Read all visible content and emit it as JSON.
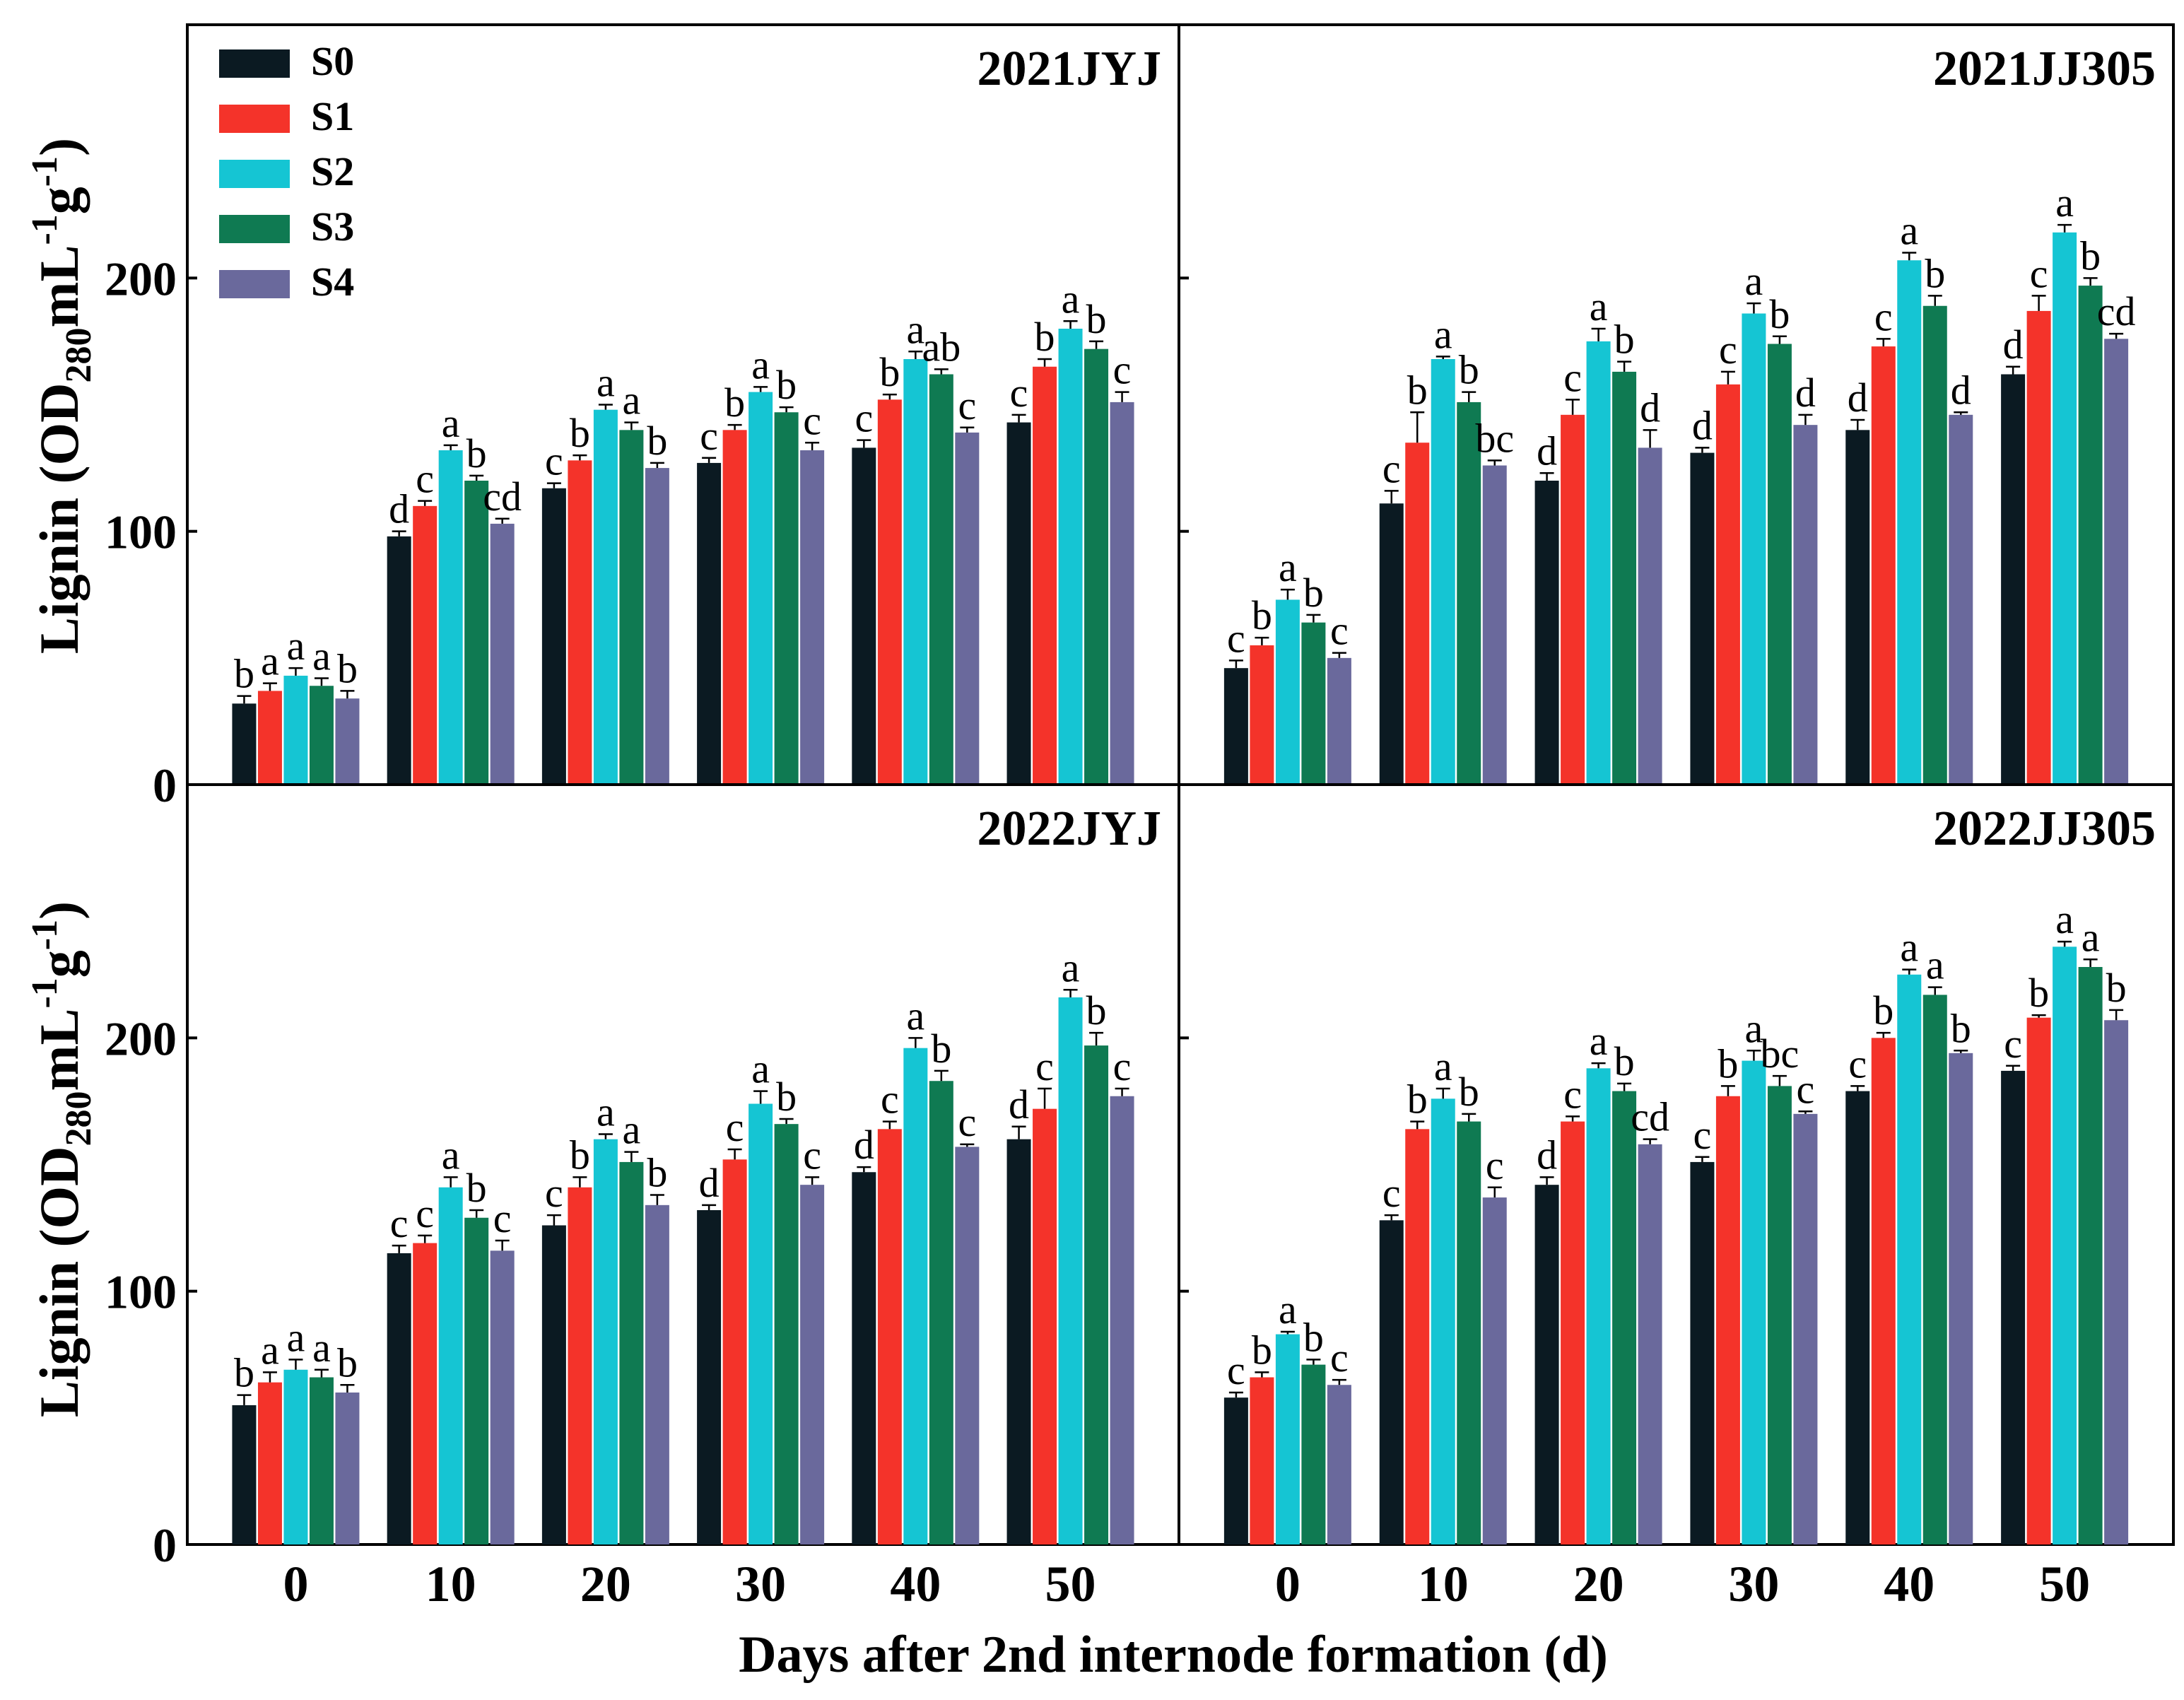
{
  "figure": {
    "ylabel": "Lignin (OD",
    "ylabel_sub": "280",
    "ylabel_mid": "mL",
    "ylabel_sup1": "-1",
    "ylabel_g": "g",
    "ylabel_sup2": "-1",
    "ylabel_end": ")",
    "xlabel": "Days after 2nd internode formation (d)"
  },
  "legend": {
    "placement": "top-left",
    "items": [
      {
        "label": "S0",
        "color": "#0b1a22"
      },
      {
        "label": "S1",
        "color": "#f4332a"
      },
      {
        "label": "S2",
        "color": "#15c5d3"
      },
      {
        "label": "S3",
        "color": "#0f7a52"
      },
      {
        "label": "S4",
        "color": "#6a699c"
      }
    ]
  },
  "chart_data": [
    {
      "type": "bar",
      "title": "2021JYJ",
      "categories": [
        "0",
        "10",
        "20",
        "30",
        "40",
        "50"
      ],
      "ylim": [
        0,
        300
      ],
      "yticks": [
        "0",
        "100",
        "200"
      ],
      "series": [
        {
          "name": "S0",
          "values": [
            32,
            98,
            117,
            127,
            133,
            143
          ],
          "errors": [
            3,
            2,
            2,
            2,
            3,
            3
          ],
          "letters": [
            "b",
            "d",
            "c",
            "c",
            "c",
            "c"
          ]
        },
        {
          "name": "S1",
          "values": [
            37,
            110,
            128,
            140,
            152,
            165
          ],
          "errors": [
            3,
            2,
            2,
            2,
            2,
            3
          ],
          "letters": [
            "a",
            "c",
            "b",
            "b",
            "b",
            "b"
          ]
        },
        {
          "name": "S2",
          "values": [
            43,
            132,
            148,
            155,
            168,
            180
          ],
          "errors": [
            3,
            2,
            2,
            2,
            3,
            3
          ],
          "letters": [
            "a",
            "a",
            "a",
            "a",
            "a",
            "a"
          ]
        },
        {
          "name": "S3",
          "values": [
            39,
            120,
            140,
            147,
            162,
            172
          ],
          "errors": [
            3,
            2,
            3,
            2,
            2,
            3
          ],
          "letters": [
            "a",
            "b",
            "a",
            "b",
            "ab",
            "b"
          ]
        },
        {
          "name": "S4",
          "values": [
            34,
            103,
            125,
            132,
            139,
            151
          ],
          "errors": [
            3,
            2,
            2,
            3,
            2,
            4
          ],
          "letters": [
            "b",
            "cd",
            "b",
            "c",
            "c",
            "c"
          ]
        }
      ]
    },
    {
      "type": "bar",
      "title": "2021JJ305",
      "categories": [
        "0",
        "10",
        "20",
        "30",
        "40",
        "50"
      ],
      "ylim": [
        0,
        300
      ],
      "yticks": [
        "0",
        "100",
        "200"
      ],
      "series": [
        {
          "name": "S0",
          "values": [
            46,
            111,
            120,
            131,
            140,
            162
          ],
          "errors": [
            3,
            5,
            3,
            2,
            4,
            3
          ],
          "letters": [
            "c",
            "c",
            "d",
            "d",
            "d",
            "d"
          ]
        },
        {
          "name": "S1",
          "values": [
            55,
            135,
            146,
            158,
            173,
            187
          ],
          "errors": [
            3,
            12,
            6,
            5,
            3,
            6
          ],
          "letters": [
            "b",
            "b",
            "c",
            "c",
            "c",
            "c"
          ]
        },
        {
          "name": "S2",
          "values": [
            73,
            168,
            175,
            186,
            207,
            218
          ],
          "errors": [
            4,
            1,
            5,
            4,
            3,
            3
          ],
          "letters": [
            "a",
            "a",
            "a",
            "a",
            "a",
            "a"
          ]
        },
        {
          "name": "S3",
          "values": [
            64,
            151,
            163,
            174,
            189,
            197
          ],
          "errors": [
            3,
            4,
            4,
            3,
            4,
            3
          ],
          "letters": [
            "b",
            "b",
            "b",
            "b",
            "b",
            "b"
          ]
        },
        {
          "name": "S4",
          "values": [
            50,
            126,
            133,
            142,
            146,
            176
          ],
          "errors": [
            2,
            2,
            7,
            4,
            1,
            2
          ],
          "letters": [
            "c",
            "bc",
            "d",
            "d",
            "d",
            "cd"
          ]
        }
      ]
    },
    {
      "type": "bar",
      "title": "2022JYJ",
      "categories": [
        "0",
        "10",
        "20",
        "30",
        "40",
        "50"
      ],
      "ylim": [
        0,
        300
      ],
      "yticks": [
        "0",
        "100",
        "200"
      ],
      "series": [
        {
          "name": "S0",
          "values": [
            55,
            115,
            126,
            132,
            147,
            160
          ],
          "errors": [
            4,
            3,
            4,
            2,
            2,
            5
          ],
          "letters": [
            "b",
            "c",
            "c",
            "d",
            "d",
            "d"
          ]
        },
        {
          "name": "S1",
          "values": [
            64,
            119,
            141,
            152,
            164,
            172
          ],
          "errors": [
            4,
            3,
            4,
            4,
            3,
            8
          ],
          "letters": [
            "a",
            "c",
            "b",
            "c",
            "c",
            "c"
          ]
        },
        {
          "name": "S2",
          "values": [
            69,
            141,
            160,
            174,
            196,
            216
          ],
          "errors": [
            4,
            4,
            2,
            5,
            4,
            3
          ],
          "letters": [
            "a",
            "a",
            "a",
            "a",
            "a",
            "a"
          ]
        },
        {
          "name": "S3",
          "values": [
            66,
            129,
            151,
            166,
            183,
            197
          ],
          "errors": [
            3,
            3,
            4,
            2,
            4,
            5
          ],
          "letters": [
            "a",
            "b",
            "a",
            "b",
            "b",
            "b"
          ]
        },
        {
          "name": "S4",
          "values": [
            60,
            116,
            134,
            142,
            157,
            177
          ],
          "errors": [
            3,
            4,
            4,
            3,
            1,
            3
          ],
          "letters": [
            "b",
            "c",
            "b",
            "c",
            "c",
            "c"
          ]
        }
      ]
    },
    {
      "type": "bar",
      "title": "2022JJ305",
      "categories": [
        "0",
        "10",
        "20",
        "30",
        "40",
        "50"
      ],
      "ylim": [
        0,
        300
      ],
      "yticks": [
        "0",
        "100",
        "200"
      ],
      "series": [
        {
          "name": "S0",
          "values": [
            58,
            128,
            142,
            151,
            179,
            187
          ],
          "errors": [
            2,
            2,
            3,
            2,
            2,
            2
          ],
          "letters": [
            "c",
            "c",
            "d",
            "c",
            "c",
            "c"
          ]
        },
        {
          "name": "S1",
          "values": [
            66,
            164,
            167,
            177,
            200,
            208
          ],
          "errors": [
            2,
            3,
            2,
            4,
            2,
            1
          ],
          "letters": [
            "b",
            "b",
            "c",
            "b",
            "b",
            "b"
          ]
        },
        {
          "name": "S2",
          "values": [
            83,
            176,
            188,
            191,
            225,
            236
          ],
          "errors": [
            1,
            4,
            2,
            4,
            2,
            2
          ],
          "letters": [
            "a",
            "a",
            "a",
            "a",
            "a",
            "a"
          ]
        },
        {
          "name": "S3",
          "values": [
            71,
            167,
            179,
            181,
            217,
            228
          ],
          "errors": [
            2,
            3,
            3,
            4,
            3,
            3
          ],
          "letters": [
            "b",
            "b",
            "b",
            "bc",
            "a",
            "a"
          ]
        },
        {
          "name": "S4",
          "values": [
            63,
            137,
            158,
            170,
            194,
            207
          ],
          "errors": [
            2,
            4,
            2,
            1,
            1,
            4
          ],
          "letters": [
            "c",
            "c",
            "cd",
            "c",
            "b",
            "b"
          ]
        }
      ]
    }
  ]
}
